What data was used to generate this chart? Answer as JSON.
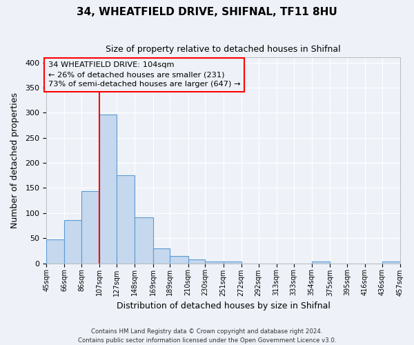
{
  "title": "34, WHEATFIELD DRIVE, SHIFNAL, TF11 8HU",
  "subtitle": "Size of property relative to detached houses in Shifnal",
  "xlabel": "Distribution of detached houses by size in Shifnal",
  "ylabel": "Number of detached properties",
  "bar_heights": [
    47,
    86,
    144,
    296,
    175,
    91,
    30,
    14,
    7,
    4,
    4,
    0,
    0,
    0,
    0,
    3,
    0,
    0,
    0,
    3
  ],
  "bin_edges": [
    45,
    66,
    86,
    107,
    127,
    148,
    169,
    189,
    210,
    230,
    251,
    272,
    292,
    313,
    333,
    354,
    375,
    395,
    416,
    436,
    457
  ],
  "bin_labels": [
    "45sqm",
    "66sqm",
    "86sqm",
    "107sqm",
    "127sqm",
    "148sqm",
    "169sqm",
    "189sqm",
    "210sqm",
    "230sqm",
    "251sqm",
    "272sqm",
    "292sqm",
    "313sqm",
    "333sqm",
    "354sqm",
    "375sqm",
    "395sqm",
    "416sqm",
    "436sqm",
    "457sqm"
  ],
  "bar_color": "#c5d8ed",
  "bar_edge_color": "#5b9bd5",
  "vline_x": 107,
  "vline_color": "red",
  "annotation_title": "34 WHEATFIELD DRIVE: 104sqm",
  "annotation_line1": "← 26% of detached houses are smaller (231)",
  "annotation_line2": "73% of semi-detached houses are larger (647) →",
  "annotation_box_color": "red",
  "ylim": [
    0,
    410
  ],
  "yticks": [
    0,
    50,
    100,
    150,
    200,
    250,
    300,
    350,
    400
  ],
  "footer1": "Contains HM Land Registry data © Crown copyright and database right 2024.",
  "footer2": "Contains public sector information licensed under the Open Government Licence v3.0.",
  "bg_color": "#eef2f8",
  "grid_color": "#ffffff",
  "plot_bg_color": "#eef2f8"
}
